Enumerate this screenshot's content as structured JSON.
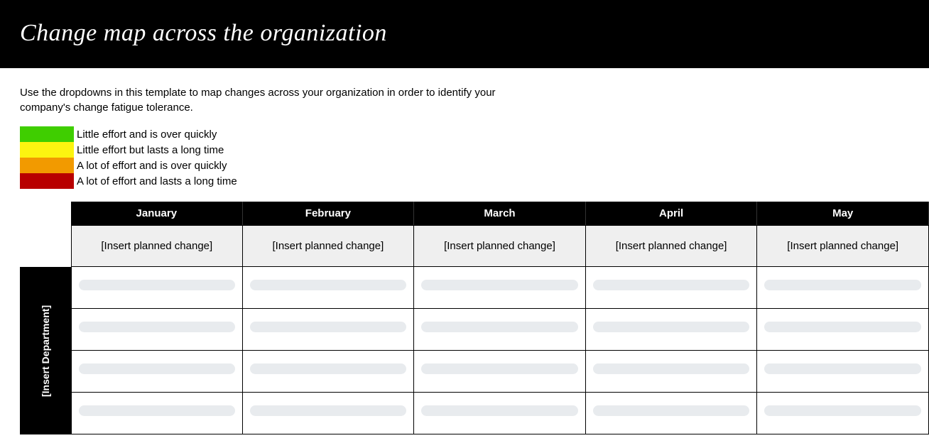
{
  "header": {
    "title": "Change map across the organization"
  },
  "intro": {
    "text": "Use the dropdowns in this template to map changes across your organization in order to identify your company's change fatigue tolerance."
  },
  "legend": {
    "items": [
      {
        "color": "#3fce00",
        "label": "Little effort and is over quickly"
      },
      {
        "color": "#fcf410",
        "label": "Little effort but lasts a long time"
      },
      {
        "color": "#f29a00",
        "label": "A lot of effort and is over quickly"
      },
      {
        "color": "#b80000",
        "label": "A lot of effort and lasts a long time"
      }
    ]
  },
  "table": {
    "months": [
      "January",
      "February",
      "March",
      "April",
      "May"
    ],
    "planned_placeholder": "[Insert planned change]",
    "department_placeholder": "[Insert Department]",
    "row_count": 4,
    "pill_color": "#e8ebee",
    "header_bg": "#000000",
    "header_fg": "#ffffff",
    "plan_bg": "#efefef",
    "border_color": "#000000"
  }
}
